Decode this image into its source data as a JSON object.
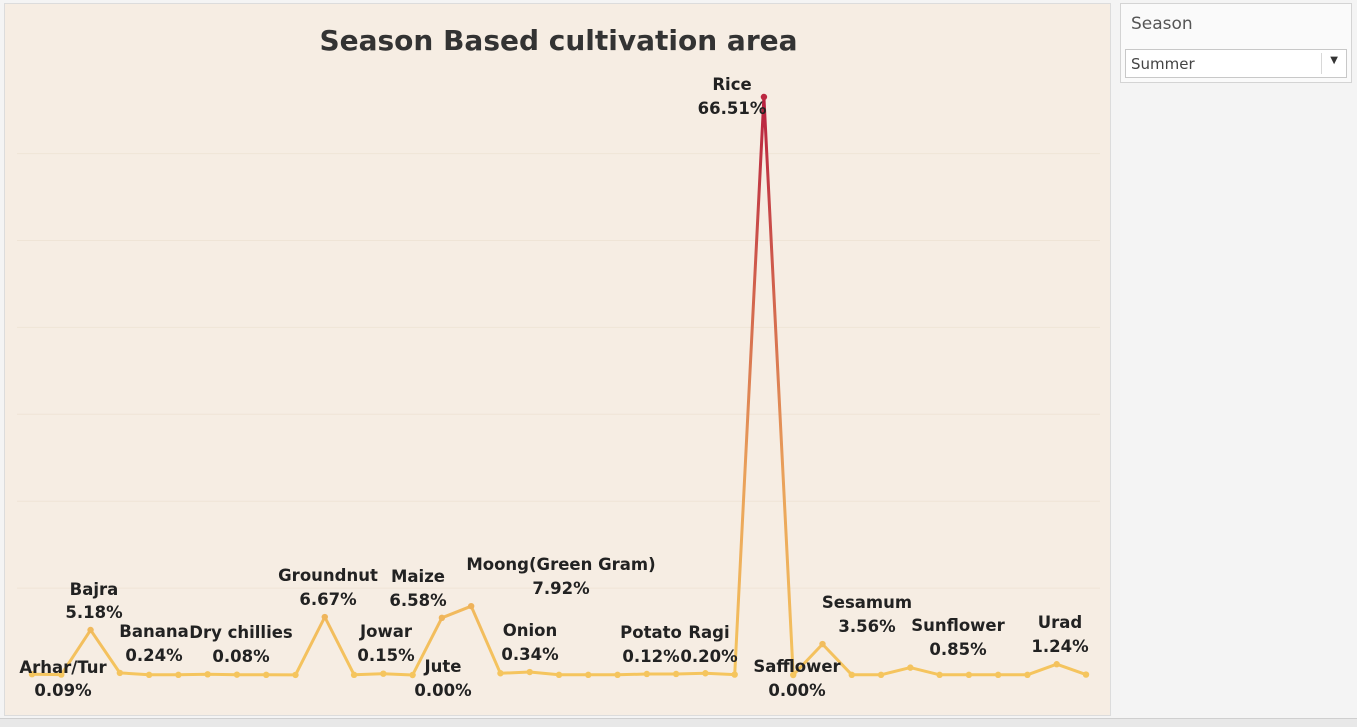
{
  "chart_data": {
    "type": "line",
    "title": "Season Based cultivation area",
    "xlabel": "",
    "ylabel": "",
    "ylim": [
      0,
      70
    ],
    "grid": true,
    "points": [
      {
        "name": "Arhar/Tur",
        "value": 0.09,
        "label": "Arhar/Tur",
        "value_label": "0.09%"
      },
      {
        "name": "",
        "value": 0.05,
        "label": "",
        "value_label": ""
      },
      {
        "name": "Bajra",
        "value": 5.18,
        "label": "Bajra",
        "value_label": "5.18%"
      },
      {
        "name": "Banana",
        "value": 0.24,
        "label": "Banana",
        "value_label": "0.24%"
      },
      {
        "name": "",
        "value": 0.02,
        "label": "",
        "value_label": ""
      },
      {
        "name": "",
        "value": 0.02,
        "label": "",
        "value_label": ""
      },
      {
        "name": "Dry chillies",
        "value": 0.08,
        "label": "Dry chillies",
        "value_label": "0.08%"
      },
      {
        "name": "",
        "value": 0.04,
        "label": "",
        "value_label": ""
      },
      {
        "name": "",
        "value": 0.02,
        "label": "",
        "value_label": ""
      },
      {
        "name": "",
        "value": 0.01,
        "label": "",
        "value_label": ""
      },
      {
        "name": "Groundnut",
        "value": 6.67,
        "label": "Groundnut",
        "value_label": "6.67%"
      },
      {
        "name": "",
        "value": 0.02,
        "label": "",
        "value_label": ""
      },
      {
        "name": "Jowar",
        "value": 0.15,
        "label": "Jowar",
        "value_label": "0.15%"
      },
      {
        "name": "Jute",
        "value": 0.0,
        "label": "Jute",
        "value_label": "0.00%"
      },
      {
        "name": "Maize",
        "value": 6.58,
        "label": "Maize",
        "value_label": "6.58%"
      },
      {
        "name": "Moong(Green Gram)",
        "value": 7.92,
        "label": "Moong(Green Gram)",
        "value_label": "7.92%"
      },
      {
        "name": "",
        "value": 0.2,
        "label": "",
        "value_label": ""
      },
      {
        "name": "Onion",
        "value": 0.34,
        "label": "Onion",
        "value_label": "0.34%"
      },
      {
        "name": "",
        "value": 0.02,
        "label": "",
        "value_label": ""
      },
      {
        "name": "",
        "value": 0.02,
        "label": "",
        "value_label": ""
      },
      {
        "name": "",
        "value": 0.02,
        "label": "",
        "value_label": ""
      },
      {
        "name": "Potato",
        "value": 0.12,
        "label": "Potato",
        "value_label": "0.12%"
      },
      {
        "name": "",
        "value": 0.12,
        "label": "",
        "value_label": ""
      },
      {
        "name": "Ragi",
        "value": 0.2,
        "label": "Ragi",
        "value_label": "0.20%"
      },
      {
        "name": "",
        "value": 0.05,
        "label": "",
        "value_label": ""
      },
      {
        "name": "Rice",
        "value": 66.51,
        "label": "Rice",
        "value_label": "66.51%"
      },
      {
        "name": "Safflower",
        "value": 0.0,
        "label": "Safflower",
        "value_label": "0.00%"
      },
      {
        "name": "Sesamum",
        "value": 3.56,
        "label": "Sesamum",
        "value_label": "3.56%"
      },
      {
        "name": "",
        "value": 0.02,
        "label": "",
        "value_label": ""
      },
      {
        "name": "",
        "value": 0.02,
        "label": "",
        "value_label": ""
      },
      {
        "name": "Sunflower",
        "value": 0.85,
        "label": "Sunflower",
        "value_label": "0.85%"
      },
      {
        "name": "",
        "value": 0.02,
        "label": "",
        "value_label": ""
      },
      {
        "name": "",
        "value": 0.02,
        "label": "",
        "value_label": ""
      },
      {
        "name": "",
        "value": 0.02,
        "label": "",
        "value_label": ""
      },
      {
        "name": "",
        "value": 0.02,
        "label": "",
        "value_label": ""
      },
      {
        "name": "Urad",
        "value": 1.24,
        "label": "Urad",
        "value_label": "1.24%"
      },
      {
        "name": "",
        "value": 0.05,
        "label": "",
        "value_label": ""
      }
    ],
    "colors": {
      "low": "#f5c55e",
      "high": "#b8203f",
      "background": "#f6ede3",
      "grid": "#efe4d6"
    }
  },
  "filter": {
    "title": "Season",
    "selected": "Summer",
    "caret_icon": "chevron-down-icon"
  }
}
